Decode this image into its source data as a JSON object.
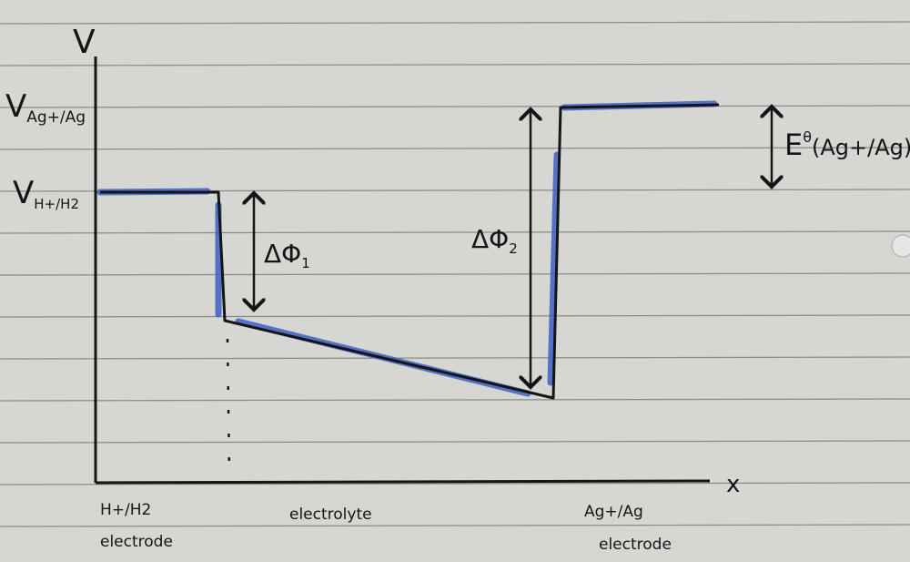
{
  "axes": {
    "y_label": "V",
    "x_label": "x"
  },
  "levels": {
    "ag_label": "V",
    "ag_sub": "Ag+/Ag",
    "h_label": "V",
    "h_sub": "H+/H2"
  },
  "annotations": {
    "delta_phi_1": "ΔΦ",
    "delta_phi_1_sub": "1",
    "delta_phi_2": "ΔΦ",
    "delta_phi_2_sub": "2",
    "standard_potential": "E",
    "standard_potential_sup": "θ",
    "standard_potential_arg": "(Ag+/Ag)"
  },
  "regions": {
    "left_electrode_line1": "H+/H2",
    "left_electrode_line2": "electrode",
    "electrolyte": "electrolyte",
    "right_electrode_line1": "Ag+/Ag",
    "right_electrode_line2": "electrode"
  },
  "colors": {
    "paper": "#d6d6d3",
    "ink": "#151515",
    "highlight": "#3d5fc4",
    "rule": "#8a8a88"
  }
}
